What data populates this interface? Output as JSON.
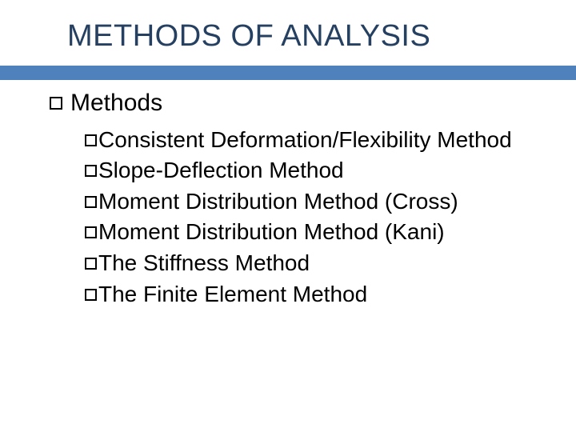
{
  "slide": {
    "title": "METHODS OF ANALYSIS",
    "accent_color": "#4f81bd",
    "title_color": "#254061",
    "body_color": "#000000",
    "background": "#ffffff",
    "section_heading": "Methods",
    "items": [
      "Consistent Deformation/Flexibility Method",
      "Slope-Deflection Method",
      "Moment Distribution Method (Cross)",
      "Moment Distribution Method (Kani)",
      "The Stiffness Method",
      "The Finite Element Method"
    ]
  }
}
